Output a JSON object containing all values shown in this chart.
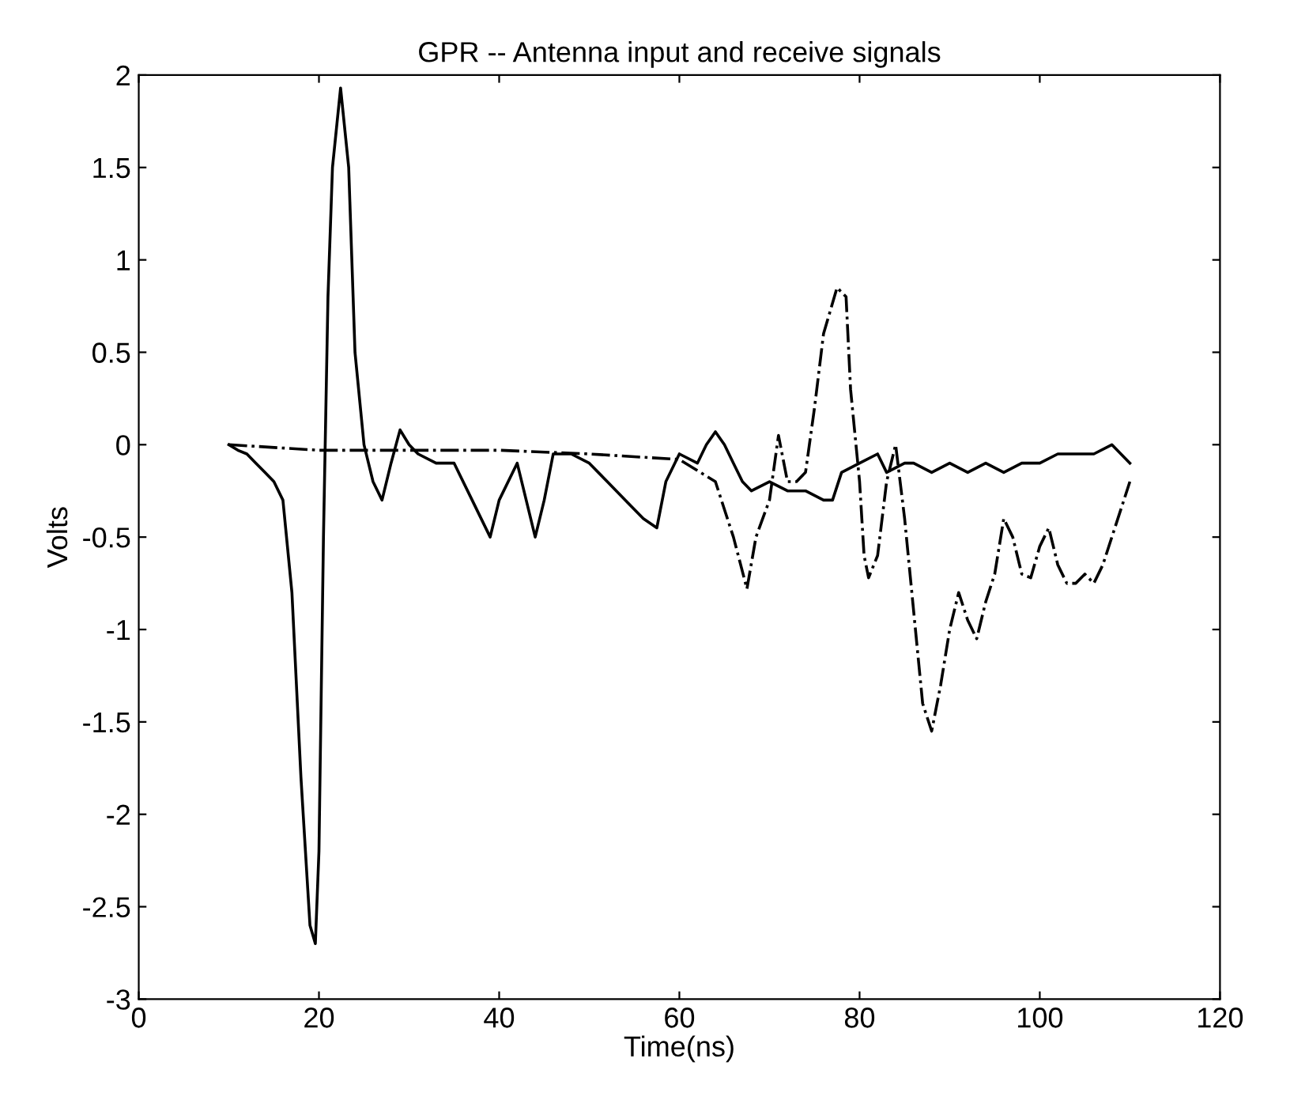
{
  "chart_data": {
    "type": "line",
    "title": "GPR -- Antenna input and receive signals",
    "xlabel": "Time(ns)",
    "ylabel": "Volts",
    "xlim": [
      0,
      120
    ],
    "xticks": [
      0,
      20,
      40,
      60,
      80,
      100,
      120
    ],
    "ylim": [
      -3,
      2
    ],
    "yticks": [
      -3,
      -2.5,
      -2,
      -1.5,
      -1,
      -0.5,
      0,
      0.5,
      1,
      1.5,
      2
    ],
    "grid": false,
    "legend": false,
    "series": [
      {
        "color": "#000000",
        "line_style": "solid",
        "x": [
          10,
          11,
          12,
          13,
          14,
          15,
          16,
          17,
          18,
          19,
          19.6,
          20,
          20.5,
          21,
          21.5,
          22.4,
          23.3,
          24,
          25,
          26,
          27,
          28,
          29,
          30,
          31,
          33,
          35,
          37,
          39,
          40,
          42,
          44,
          45,
          46,
          48,
          50,
          52,
          54,
          56,
          57.5,
          58.5,
          60,
          62,
          63,
          64,
          65,
          66,
          67,
          68,
          70,
          72,
          74,
          76,
          77,
          78,
          80,
          82,
          83,
          85,
          86,
          88,
          90,
          92,
          94,
          96,
          98,
          100,
          102,
          104,
          106,
          108,
          110
        ],
        "values": [
          0,
          -0.03,
          -0.05,
          -0.1,
          -0.15,
          -0.2,
          -0.3,
          -0.8,
          -1.8,
          -2.6,
          -2.7,
          -2.2,
          -0.5,
          0.8,
          1.5,
          1.93,
          1.5,
          0.5,
          0,
          -0.2,
          -0.3,
          -0.1,
          0.08,
          0,
          -0.05,
          -0.1,
          -0.1,
          -0.3,
          -0.5,
          -0.3,
          -0.1,
          -0.5,
          -0.3,
          -0.05,
          -0.05,
          -0.1,
          -0.2,
          -0.3,
          -0.4,
          -0.45,
          -0.2,
          -0.05,
          -0.1,
          0,
          0.07,
          0,
          -0.1,
          -0.2,
          -0.25,
          -0.2,
          -0.25,
          -0.25,
          -0.3,
          -0.3,
          -0.15,
          -0.1,
          -0.05,
          -0.15,
          -0.1,
          -0.1,
          -0.15,
          -0.1,
          -0.15,
          -0.1,
          -0.15,
          -0.1,
          -0.1,
          -0.05,
          -0.05,
          -0.05,
          0,
          -0.1
        ]
      },
      {
        "color": "#000000",
        "line_style": "dashdot",
        "x": [
          10,
          20,
          25,
          30,
          40,
          50,
          60,
          64,
          66,
          67.5,
          68.5,
          70,
          71,
          72,
          73,
          74,
          75,
          76,
          77.5,
          78.5,
          79,
          80,
          80.5,
          81,
          82,
          83,
          84,
          85,
          86,
          87,
          88,
          89,
          90,
          91,
          92,
          93,
          94,
          95,
          96,
          97,
          98,
          99,
          100,
          101,
          102,
          103,
          104,
          105,
          106,
          107,
          108,
          110
        ],
        "values": [
          0,
          -0.03,
          -0.03,
          -0.03,
          -0.03,
          -0.05,
          -0.08,
          -0.2,
          -0.5,
          -0.78,
          -0.5,
          -0.3,
          0.05,
          -0.2,
          -0.2,
          -0.15,
          0.2,
          0.6,
          0.85,
          0.8,
          0.3,
          -0.2,
          -0.6,
          -0.72,
          -0.6,
          -0.2,
          0,
          -0.4,
          -0.9,
          -1.4,
          -1.55,
          -1.3,
          -1,
          -0.8,
          -0.95,
          -1.05,
          -0.85,
          -0.7,
          -0.4,
          -0.5,
          -0.7,
          -0.72,
          -0.55,
          -0.45,
          -0.65,
          -0.75,
          -0.75,
          -0.7,
          -0.75,
          -0.65,
          -0.5,
          -0.2
        ]
      }
    ]
  }
}
